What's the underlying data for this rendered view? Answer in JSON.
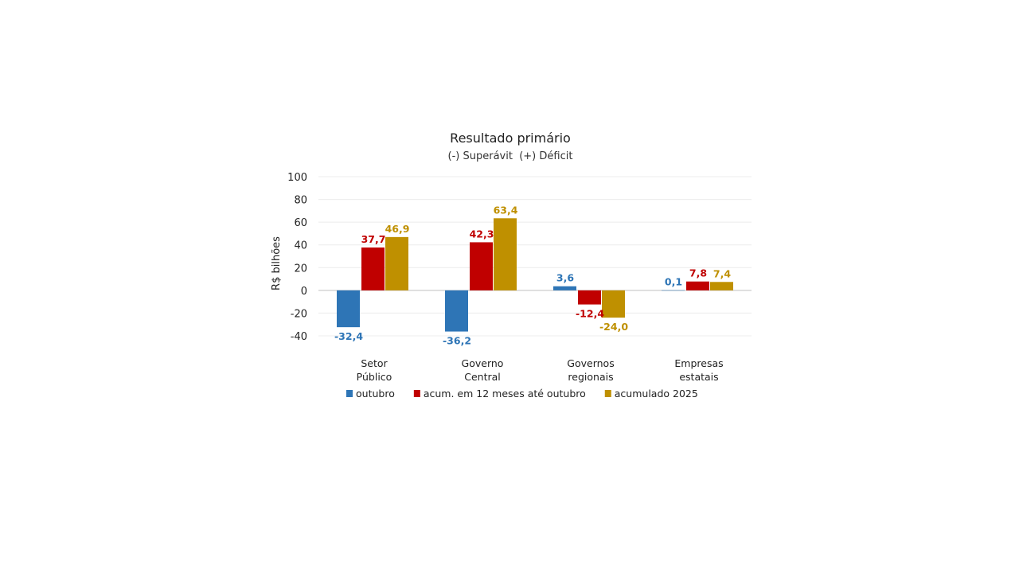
{
  "chart_data": {
    "type": "bar",
    "title": "Resultado primário",
    "subtitle": "(-) Superávit  (+) Déficit",
    "xlabel": "",
    "ylabel": "R$ bilhões",
    "ylim": [
      -40,
      100
    ],
    "yticks": [
      "100",
      "80",
      "60",
      "40",
      "20",
      "0",
      "-20",
      "-40"
    ],
    "ytick_values": [
      100,
      80,
      60,
      40,
      20,
      0,
      -20,
      -40
    ],
    "grid": true,
    "legend": "bottom",
    "categories": [
      [
        "Setor",
        "Público"
      ],
      [
        "Governo",
        "Central"
      ],
      [
        "Governos",
        "regionais"
      ],
      [
        "Empresas",
        "estatais"
      ]
    ],
    "series": [
      {
        "name": "outubro",
        "color": "#2E75B6",
        "values": [
          -32.4,
          -36.2,
          3.6,
          0.1
        ],
        "labels": [
          "-32,4",
          "-36,2",
          "3,6",
          "0,1"
        ]
      },
      {
        "name": "acum. em 12 meses até outubro",
        "color": "#C00000",
        "values": [
          37.7,
          42.3,
          -12.4,
          7.8
        ],
        "labels": [
          "37,7",
          "42,3",
          "-12,4",
          "7,8"
        ]
      },
      {
        "name": "acumulado 2025",
        "color": "#BF9000",
        "values": [
          46.9,
          63.4,
          -24.0,
          7.4
        ],
        "labels": [
          "46,9",
          "63,4",
          "-24,0",
          "7,4"
        ]
      }
    ]
  }
}
